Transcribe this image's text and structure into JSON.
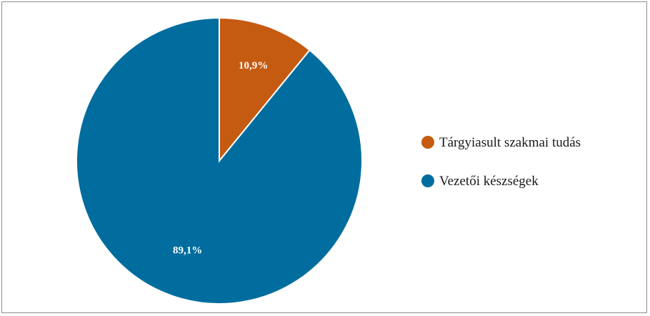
{
  "chart_data": {
    "type": "pie",
    "categories": [
      "Tárgyiasult szakmai tudás",
      "Vezetői készségek"
    ],
    "values": [
      10.9,
      89.1
    ],
    "labels": [
      "10,9%",
      "89,1%"
    ],
    "colors": [
      "#c55a11",
      "#006d9e"
    ],
    "legend_position": "right"
  }
}
